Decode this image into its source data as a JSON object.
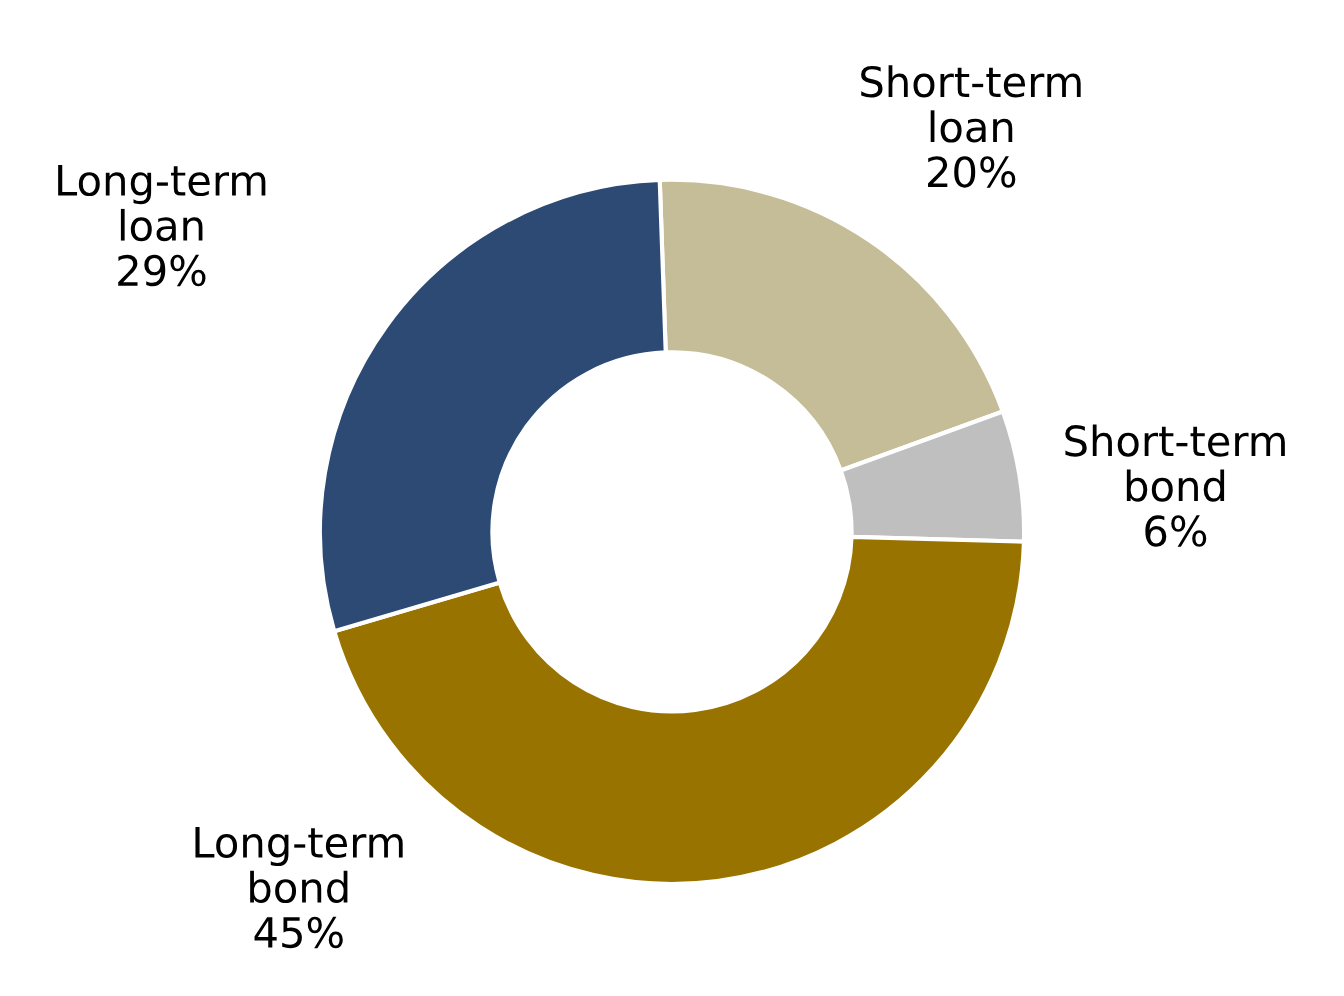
{
  "chart_data": {
    "type": "donut",
    "categories": [
      "Short-term loan",
      "Short-term bond",
      "Long-term bond",
      "Long-term loan"
    ],
    "values": [
      20,
      6,
      45,
      29
    ],
    "value_labels": [
      "20%",
      "6%",
      "45%",
      "29%"
    ],
    "colors": [
      "#c4bd97",
      "#bfbfbf",
      "#997300",
      "#2c4a74"
    ],
    "legend": false
  }
}
